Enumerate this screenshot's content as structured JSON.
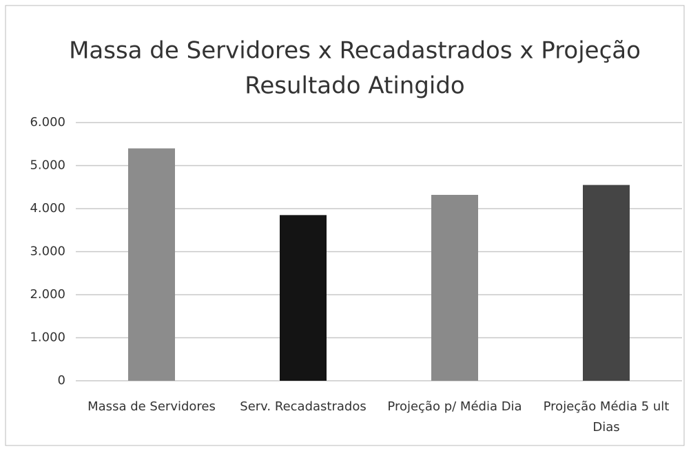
{
  "chart_data": {
    "type": "bar",
    "title": "Massa de Servidores x Recadastrados x Projeção",
    "subtitle": "Resultado Atingido",
    "categories": [
      "Massa de Servidores",
      "Serv. Recadastrados",
      "Projeção p/ Média Dia",
      "Projeção Média 5 ult Dias"
    ],
    "values": [
      5400,
      3850,
      4320,
      4550
    ],
    "colors": [
      "#8c8c8c",
      "#141414",
      "#8a8a8a",
      "#454545"
    ],
    "ylim": [
      0,
      6000
    ],
    "yticks": [
      0,
      {
        "value": 1000,
        "label": "1.000"
      },
      {
        "value": 2000,
        "label": "2.000"
      },
      {
        "value": 3000,
        "label": "3.000"
      },
      {
        "value": 4000,
        "label": "4.000"
      },
      {
        "value": 5000,
        "label": "5.000"
      },
      {
        "value": 6000,
        "label": "6.000"
      }
    ],
    "grid": true
  }
}
